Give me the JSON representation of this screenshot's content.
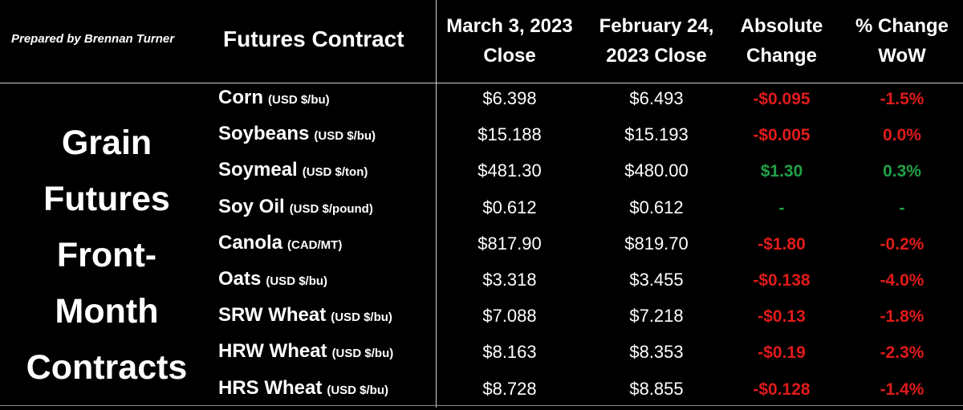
{
  "prepared_by": "Prepared by Brennan Turner",
  "side_title": [
    "Grain",
    "Futures",
    "Front-",
    "Month",
    "Contracts"
  ],
  "headers": {
    "contract": "Futures Contract",
    "march": [
      "March 3, 2023",
      "Close"
    ],
    "feb": [
      "February 24,",
      "2023 Close"
    ],
    "abs": [
      "Absolute",
      "Change"
    ],
    "pct": [
      "% Change",
      "WoW"
    ]
  },
  "colors": {
    "negative": "#e01b1b",
    "positive": "#21a045",
    "background": "#000000"
  },
  "rows": [
    {
      "name": "Corn",
      "unit": "(USD $/bu)",
      "march": "$6.398",
      "feb": "$6.493",
      "abs": "-$0.095",
      "pct": "-1.5%",
      "dir": "neg"
    },
    {
      "name": "Soybeans",
      "unit": "(USD $/bu)",
      "march": "$15.188",
      "feb": "$15.193",
      "abs": "-$0.005",
      "pct": "0.0%",
      "dir": "neg"
    },
    {
      "name": "Soymeal",
      "unit": "(USD $/ton)",
      "march": "$481.30",
      "feb": "$480.00",
      "abs": "$1.30",
      "pct": "0.3%",
      "dir": "pos"
    },
    {
      "name": "Soy Oil",
      "unit": "(USD $/pound)",
      "march": "$0.612",
      "feb": "$0.612",
      "abs": "-",
      "pct": "-",
      "dir": "pos"
    },
    {
      "name": "Canola",
      "unit": "(CAD/MT)",
      "march": "$817.90",
      "feb": "$819.70",
      "abs": "-$1.80",
      "pct": "-0.2%",
      "dir": "neg"
    },
    {
      "name": "Oats",
      "unit": "(USD $/bu)",
      "march": "$3.318",
      "feb": "$3.455",
      "abs": "-$0.138",
      "pct": "-4.0%",
      "dir": "neg"
    },
    {
      "name": "SRW Wheat",
      "unit": "(USD $/bu)",
      "march": "$7.088",
      "feb": "$7.218",
      "abs": "-$0.13",
      "pct": "-1.8%",
      "dir": "neg"
    },
    {
      "name": "HRW Wheat",
      "unit": "(USD $/bu)",
      "march": "$8.163",
      "feb": "$8.353",
      "abs": "-$0.19",
      "pct": "-2.3%",
      "dir": "neg"
    },
    {
      "name": "HRS Wheat",
      "unit": "(USD $/bu)",
      "march": "$8.728",
      "feb": "$8.855",
      "abs": "-$0.128",
      "pct": "-1.4%",
      "dir": "neg"
    }
  ]
}
